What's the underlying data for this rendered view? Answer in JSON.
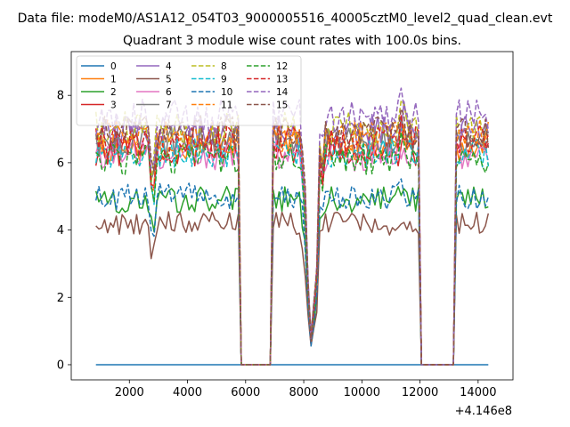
{
  "figure": {
    "suptitle": "Data file: modeM0/AS1A12_054T03_9000005516_40005cztM0_level2_quad_clean.evt",
    "offset_label": "+4.146e8"
  },
  "chart_data": {
    "type": "line",
    "title": "Quadrant 3 module wise count rates with 100.0s bins.",
    "xlabel": "",
    "ylabel": "",
    "xlim": [
      0,
      15200
    ],
    "ylim": [
      -0.45,
      9.3
    ],
    "x_ticks": [
      2000,
      4000,
      6000,
      8000,
      10000,
      12000,
      14000
    ],
    "x_tick_labels": [
      "2000",
      "4000",
      "6000",
      "8000",
      "10000",
      "12000",
      "14000"
    ],
    "y_ticks": [
      0,
      2,
      4,
      6,
      8
    ],
    "y_tick_labels": [
      "0",
      "2",
      "4",
      "6",
      "8"
    ],
    "grid": false,
    "legend_position": "top-left",
    "legend_columns": 4,
    "series": [
      {
        "name": "0",
        "color": "#1f77b4",
        "dash": "solid",
        "level": 0.0,
        "amp": 0.0
      },
      {
        "name": "1",
        "color": "#ff7f0e",
        "dash": "solid",
        "level": 6.5,
        "amp": 0.45
      },
      {
        "name": "2",
        "color": "#2ca02c",
        "dash": "solid",
        "level": 4.9,
        "amp": 0.4
      },
      {
        "name": "3",
        "color": "#d62728",
        "dash": "solid",
        "level": 6.4,
        "amp": 0.5
      },
      {
        "name": "4",
        "color": "#9467bd",
        "dash": "solid",
        "level": 6.9,
        "amp": 0.55
      },
      {
        "name": "5",
        "color": "#8c564b",
        "dash": "solid",
        "level": 4.2,
        "amp": 0.35
      },
      {
        "name": "6",
        "color": "#e377c2",
        "dash": "solid",
        "level": 6.2,
        "amp": 0.45
      },
      {
        "name": "7",
        "color": "#7f7f7f",
        "dash": "solid",
        "level": 6.6,
        "amp": 0.45
      },
      {
        "name": "8",
        "color": "#bcbd22",
        "dash": "dashed",
        "level": 7.0,
        "amp": 0.55
      },
      {
        "name": "9",
        "color": "#17becf",
        "dash": "dashed",
        "level": 6.3,
        "amp": 0.45
      },
      {
        "name": "10",
        "color": "#1f77b4",
        "dash": "dashed",
        "level": 5.0,
        "amp": 0.4
      },
      {
        "name": "11",
        "color": "#ff7f0e",
        "dash": "dashed",
        "level": 6.8,
        "amp": 0.5
      },
      {
        "name": "12",
        "color": "#2ca02c",
        "dash": "dashed",
        "level": 6.1,
        "amp": 0.45
      },
      {
        "name": "13",
        "color": "#d62728",
        "dash": "dashed",
        "level": 6.6,
        "amp": 0.5
      },
      {
        "name": "14",
        "color": "#9467bd",
        "dash": "dashed",
        "level": 7.3,
        "amp": 0.6
      },
      {
        "name": "15",
        "color": "#8c564b",
        "dash": "dashed",
        "level": 6.9,
        "amp": 0.5
      }
    ],
    "segments": [
      {
        "start": 850,
        "end": 5750
      },
      {
        "start": 6950,
        "end": 8150
      },
      {
        "start": 8250,
        "end": 11950
      },
      {
        "start": 13250,
        "end": 14350
      }
    ],
    "bin_width": 100
  }
}
